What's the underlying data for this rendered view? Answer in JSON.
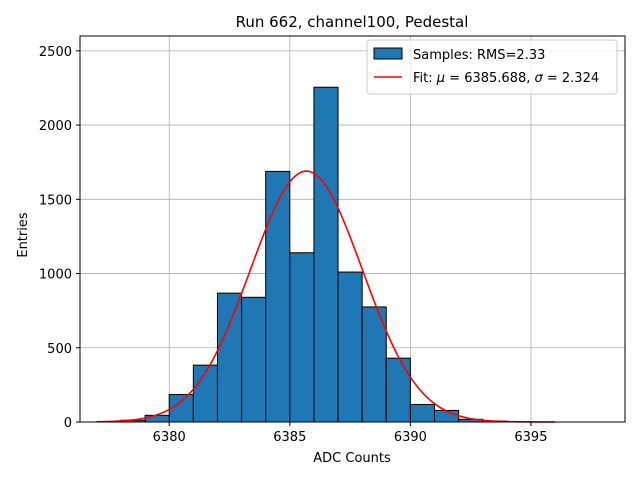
{
  "chart_data": {
    "type": "bar",
    "title": "Run 662, channel100, Pedestal",
    "xlabel": "ADC Counts",
    "ylabel": "Entries",
    "xlim": [
      6376.3,
      6398.9
    ],
    "ylim": [
      0,
      2600
    ],
    "xticks": [
      6380,
      6385,
      6390,
      6395
    ],
    "yticks": [
      0,
      500,
      1000,
      1500,
      2000,
      2500
    ],
    "grid": true,
    "legend_position": "top-right",
    "bar_color": "#1f77b4",
    "bar_edge_color": "#000000",
    "fit_color": "#ff0000",
    "histogram": {
      "name": "Samples: RMS=2.33",
      "bin_width": 1.0,
      "bin_starts": [
        6377,
        6378,
        6379,
        6380,
        6381,
        6382,
        6383,
        6384,
        6385,
        6386,
        6387,
        6388,
        6389,
        6390,
        6391,
        6392,
        6393,
        6394,
        6395
      ],
      "counts": [
        2,
        12,
        45,
        185,
        383,
        868,
        840,
        1688,
        1140,
        2255,
        1010,
        775,
        430,
        118,
        78,
        18,
        6,
        1,
        0
      ]
    },
    "fit": {
      "name_prefix": "Fit: ",
      "mu_symbol": "μ",
      "sigma_symbol": "σ",
      "mu_text": " = 6385.688, ",
      "sigma_text": " = 2.324",
      "mu": 6385.688,
      "sigma": 2.324,
      "amplitude": 1690,
      "x_range": [
        6377,
        6396
      ]
    }
  }
}
